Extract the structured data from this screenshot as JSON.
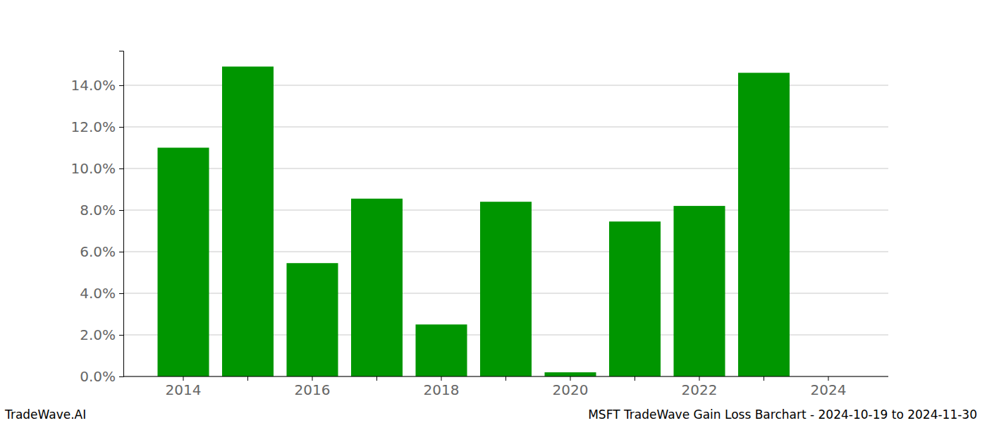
{
  "chart_data": {
    "type": "bar",
    "title": "MSFT TradeWave Gain Loss Barchart - 2024-10-19 to 2024-11-30",
    "annotations": [
      "TradeWave.AI"
    ],
    "categories": [
      "2014",
      null,
      "2016",
      null,
      "2018",
      null,
      "2020",
      null,
      "2022",
      null,
      "2024"
    ],
    "values": [
      11.0,
      14.9,
      5.45,
      8.55,
      2.5,
      8.4,
      0.2,
      7.45,
      8.2,
      14.6,
      0
    ],
    "color": "#009600",
    "ylim": [
      0,
      15.66
    ],
    "yticks": [
      {
        "value": 0,
        "label": "0.0%"
      },
      {
        "value": 2,
        "label": "2.0%"
      },
      {
        "value": 4,
        "label": "4.0%"
      },
      {
        "value": 6,
        "label": "6.0%"
      },
      {
        "value": 8,
        "label": "8.0%"
      },
      {
        "value": 10,
        "label": "10.0%"
      },
      {
        "value": 12,
        "label": "12.0%"
      },
      {
        "value": 14,
        "label": "14.0%"
      }
    ],
    "grid": true
  }
}
